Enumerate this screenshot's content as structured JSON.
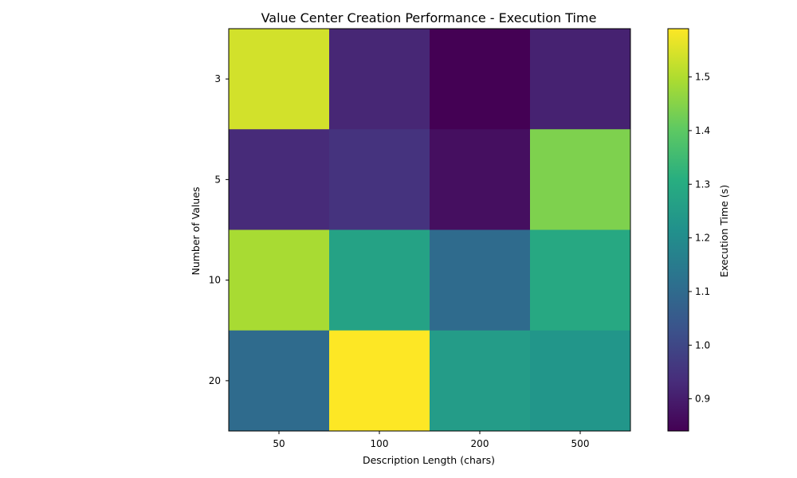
{
  "chart_data": {
    "type": "heatmap",
    "title": "Value Center Creation Performance - Execution Time",
    "xlabel": "Description Length (chars)",
    "ylabel": "Number of Values",
    "x_categories": [
      "50",
      "100",
      "200",
      "500"
    ],
    "y_categories": [
      "3",
      "5",
      "10",
      "20"
    ],
    "values": [
      [
        1.54,
        0.92,
        0.84,
        0.91
      ],
      [
        0.93,
        0.95,
        0.87,
        1.44
      ],
      [
        1.49,
        1.27,
        1.1,
        1.29
      ],
      [
        1.1,
        1.59,
        1.25,
        1.23
      ]
    ],
    "colormap": "viridis",
    "vmin": 0.84,
    "vmax": 1.59,
    "colorbar": {
      "label": "Execution Time (s)",
      "ticks": [
        "0.9",
        "1.0",
        "1.1",
        "1.2",
        "1.3",
        "1.4",
        "1.5"
      ]
    }
  }
}
